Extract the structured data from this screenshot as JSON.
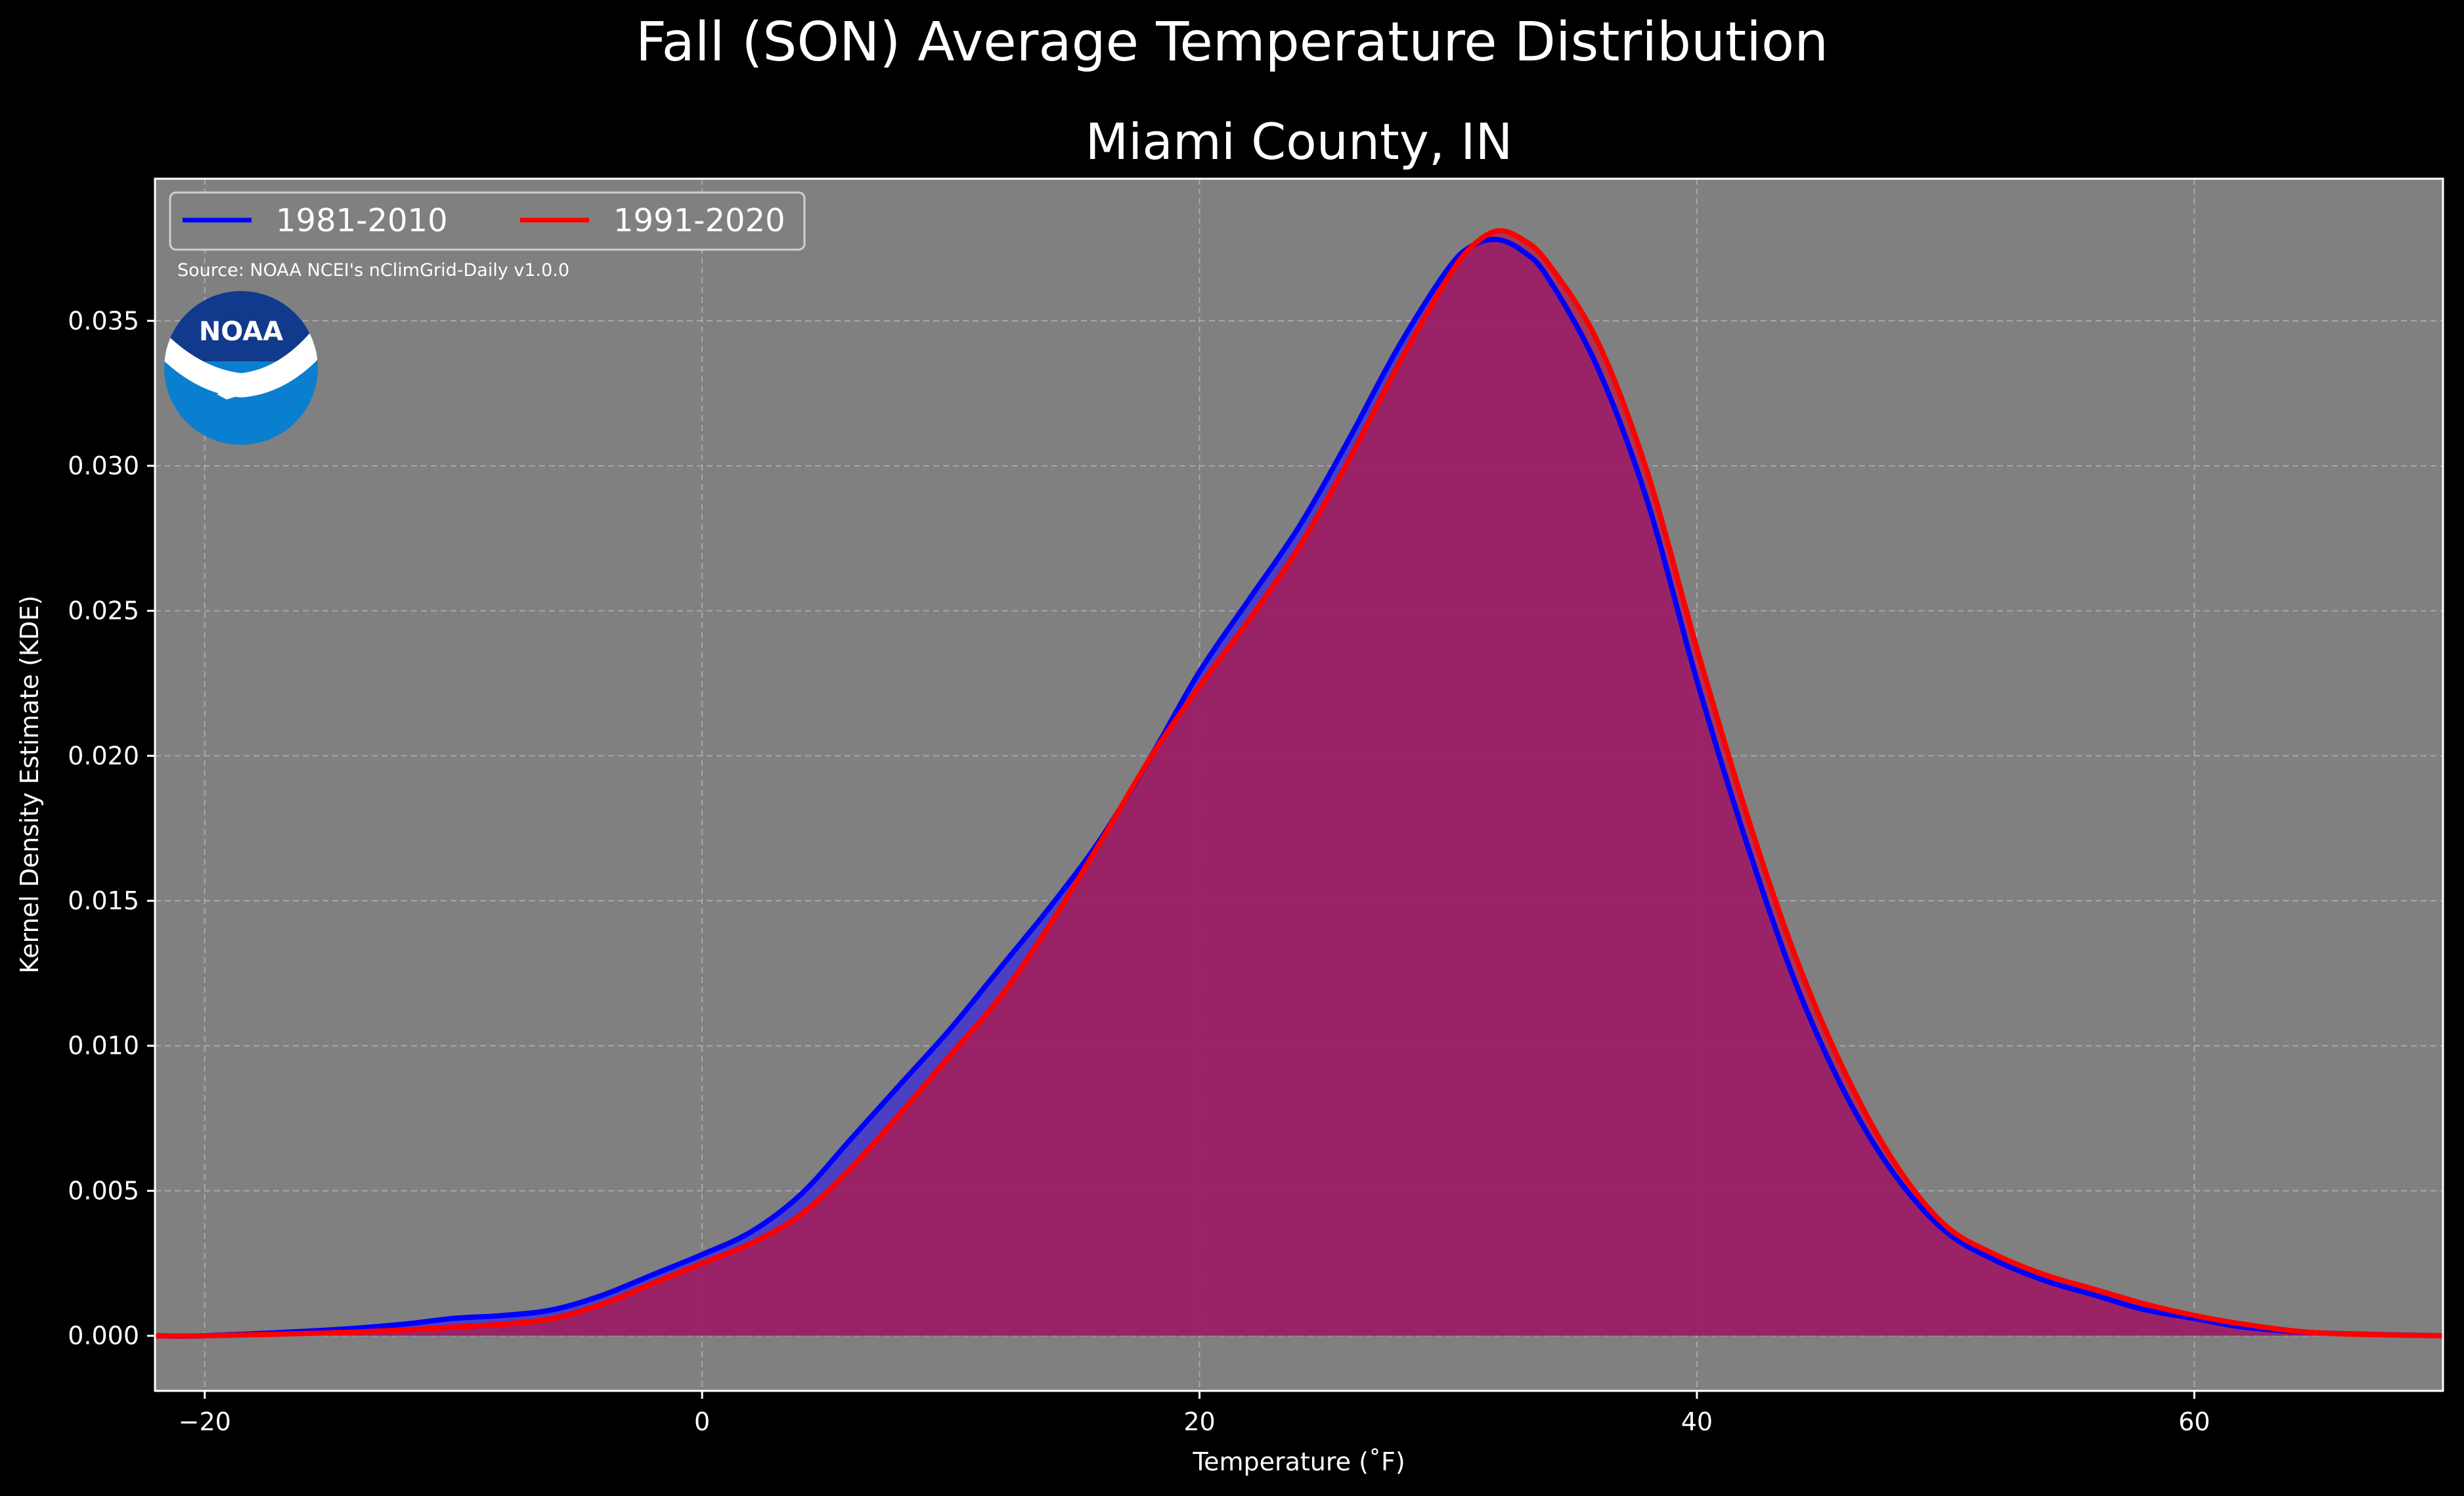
{
  "chart_data": {
    "type": "area",
    "title": "Fall (SON) Average Temperature Distribution",
    "subtitle": "Miami County, IN",
    "xlabel": "Temperature (˚F)",
    "ylabel": "Kernel Density Estimate (KDE)",
    "xlim": [
      -22,
      70
    ],
    "ylim": [
      -0.0019,
      0.0399
    ],
    "x_ticks": [
      -20,
      0,
      20,
      40,
      60
    ],
    "x_tick_labels": [
      "−20",
      "0",
      "20",
      "40",
      "60"
    ],
    "y_ticks": [
      0.0,
      0.005,
      0.01,
      0.015,
      0.02,
      0.025,
      0.03,
      0.035
    ],
    "y_tick_labels": [
      "0.000",
      "0.005",
      "0.010",
      "0.015",
      "0.020",
      "0.025",
      "0.030",
      "0.035"
    ],
    "grid": true,
    "legend": "top-left",
    "background": "#808080",
    "annotation": "Source: NOAA NCEI's nClimGrid-Daily v1.0.0",
    "logo_icon": "noaa-logo",
    "series": [
      {
        "name": "1981-2010",
        "line_color": "#0000ff",
        "fill_color": "#3a2bd8",
        "points": [
          [
            -22,
            0.0
          ],
          [
            -20,
            0.0
          ],
          [
            -15,
            0.0002
          ],
          [
            -12,
            0.0004
          ],
          [
            -10,
            0.0006
          ],
          [
            -8,
            0.0007
          ],
          [
            -6,
            0.0009
          ],
          [
            -4,
            0.0014
          ],
          [
            -2,
            0.0021
          ],
          [
            0,
            0.0028
          ],
          [
            2,
            0.0036
          ],
          [
            4,
            0.0049
          ],
          [
            6,
            0.0068
          ],
          [
            8,
            0.0087
          ],
          [
            10,
            0.0106
          ],
          [
            12,
            0.0127
          ],
          [
            14,
            0.0148
          ],
          [
            16,
            0.0171
          ],
          [
            18,
            0.0199
          ],
          [
            20,
            0.0229
          ],
          [
            22,
            0.0254
          ],
          [
            24,
            0.0279
          ],
          [
            26,
            0.0309
          ],
          [
            28,
            0.0341
          ],
          [
            30,
            0.0368
          ],
          [
            31,
            0.0376
          ],
          [
            32,
            0.0378
          ],
          [
            33,
            0.0374
          ],
          [
            34,
            0.0365
          ],
          [
            36,
            0.0334
          ],
          [
            38,
            0.0288
          ],
          [
            40,
            0.0226
          ],
          [
            42,
            0.017
          ],
          [
            44,
            0.0121
          ],
          [
            46,
            0.0083
          ],
          [
            48,
            0.0055
          ],
          [
            50,
            0.0036
          ],
          [
            52,
            0.0026
          ],
          [
            54,
            0.0019
          ],
          [
            56,
            0.0014
          ],
          [
            58,
            0.0009
          ],
          [
            60,
            0.0006
          ],
          [
            62,
            0.0003
          ],
          [
            65,
            0.0001
          ],
          [
            70,
            0.0
          ]
        ]
      },
      {
        "name": "1991-2020",
        "line_color": "#ff0000",
        "fill_color": "#b81845",
        "points": [
          [
            -22,
            0.0
          ],
          [
            -20,
            0.0
          ],
          [
            -15,
            0.0001
          ],
          [
            -12,
            0.0002
          ],
          [
            -10,
            0.0003
          ],
          [
            -8,
            0.0004
          ],
          [
            -6,
            0.0006
          ],
          [
            -4,
            0.0011
          ],
          [
            -2,
            0.0018
          ],
          [
            0,
            0.0025
          ],
          [
            2,
            0.0032
          ],
          [
            4,
            0.0042
          ],
          [
            6,
            0.0058
          ],
          [
            8,
            0.0077
          ],
          [
            10,
            0.0097
          ],
          [
            12,
            0.0117
          ],
          [
            14,
            0.0142
          ],
          [
            16,
            0.017
          ],
          [
            18,
            0.0199
          ],
          [
            20,
            0.0224
          ],
          [
            22,
            0.0247
          ],
          [
            24,
            0.0272
          ],
          [
            26,
            0.0302
          ],
          [
            28,
            0.0335
          ],
          [
            30,
            0.0365
          ],
          [
            31,
            0.0376
          ],
          [
            32,
            0.0381
          ],
          [
            33,
            0.0378
          ],
          [
            34,
            0.037
          ],
          [
            36,
            0.0343
          ],
          [
            38,
            0.0298
          ],
          [
            40,
            0.0237
          ],
          [
            42,
            0.018
          ],
          [
            44,
            0.013
          ],
          [
            46,
            0.009
          ],
          [
            48,
            0.0059
          ],
          [
            50,
            0.0038
          ],
          [
            52,
            0.0028
          ],
          [
            54,
            0.0021
          ],
          [
            56,
            0.0016
          ],
          [
            58,
            0.0011
          ],
          [
            60,
            0.0007
          ],
          [
            62,
            0.0004
          ],
          [
            65,
            0.0001
          ],
          [
            70,
            0.0
          ]
        ]
      }
    ]
  }
}
